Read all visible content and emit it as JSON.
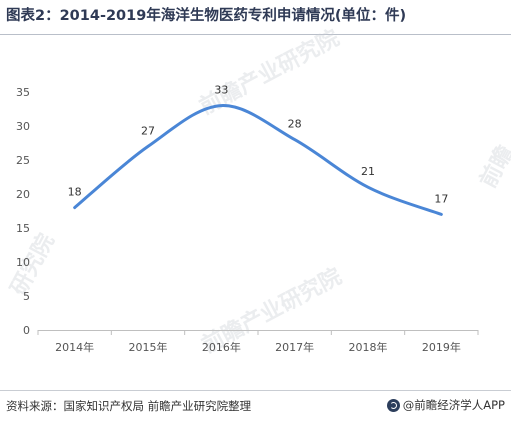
{
  "title": "图表2：2014-2019年海洋生物医药专利申请情况(单位：件)",
  "source": "资料来源：国家知识产权局 前瞻产业研究院整理",
  "brand": "@前瞻经济学人APP",
  "colors": {
    "line": "#4a86d6",
    "grid": "#e3e3e3",
    "title": "#2f3a55"
  },
  "chart_data": {
    "type": "line",
    "title": "图表2：2014-2019年海洋生物医药专利申请情况(单位：件)",
    "xlabel": "",
    "ylabel": "",
    "categories": [
      "2014年",
      "2015年",
      "2016年",
      "2017年",
      "2018年",
      "2019年"
    ],
    "values": [
      18,
      27,
      33,
      28,
      21,
      17
    ],
    "ylim": [
      0,
      35
    ],
    "yticks": [
      "0",
      "5",
      "10",
      "15",
      "20",
      "25",
      "30",
      "35"
    ],
    "data_labels": [
      "18",
      "27",
      "33",
      "28",
      "21",
      "17"
    ],
    "smooth": true,
    "grid": false,
    "legend": "none"
  }
}
